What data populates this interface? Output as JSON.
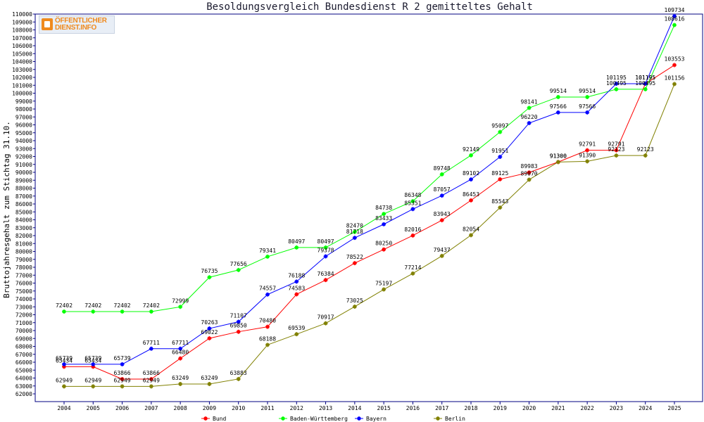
{
  "chart_data": {
    "type": "line",
    "title": "Besoldungsvergleich Bundesdienst R 2 gemitteltes Gehalt",
    "xlabel": "",
    "ylabel": "Bruttojahresgehalt zum Stichtag 31.10.",
    "ylim": [
      62000,
      110000
    ],
    "ystep": 1000,
    "grid": false,
    "legend_position": "bottom",
    "categories": [
      "2004",
      "2005",
      "2006",
      "2007",
      "2008",
      "2009",
      "2010",
      "2011",
      "2012",
      "2013",
      "2014",
      "2015",
      "2016",
      "2017",
      "2018",
      "2019",
      "2020",
      "2021",
      "2022",
      "2023",
      "2024",
      "2025"
    ],
    "series": [
      {
        "name": "Bund",
        "color": "#ff0000",
        "values": [
          65434,
          65434,
          63866,
          63866,
          66480,
          69022,
          69850,
          70480,
          74583,
          76384,
          78522,
          80250,
          82016,
          83943,
          86453,
          89125,
          89983,
          91300,
          92791,
          92791,
          101195,
          103553
        ]
      },
      {
        "name": "Baden-Württemberg",
        "color": "#00ff00",
        "values": [
          72402,
          72402,
          72402,
          72402,
          72999,
          76735,
          77656,
          79341,
          80497,
          80497,
          82470,
          84738,
          86348,
          89748,
          92149,
          95097,
          98141,
          99514,
          99514,
          100495,
          100495,
          108616
        ]
      },
      {
        "name": "Bayern",
        "color": "#0000ff",
        "values": [
          65739,
          65739,
          65739,
          67711,
          67711,
          70263,
          71107,
          74557,
          76188,
          79378,
          81718,
          83433,
          85351,
          87057,
          89102,
          91951,
          96220,
          97566,
          97566,
          101195,
          101195,
          109734
        ]
      },
      {
        "name": "Berlin",
        "color": "#808000",
        "values": [
          62949,
          62949,
          62949,
          62949,
          63249,
          63249,
          63883,
          68188,
          69539,
          70917,
          73025,
          75197,
          77214,
          79437,
          82054,
          85543,
          89070,
          91300,
          91390,
          92123,
          92123,
          101156
        ]
      }
    ]
  },
  "logo": {
    "line1": "ÖFFENTLICHER",
    "line2": "DIENST.INFO"
  }
}
